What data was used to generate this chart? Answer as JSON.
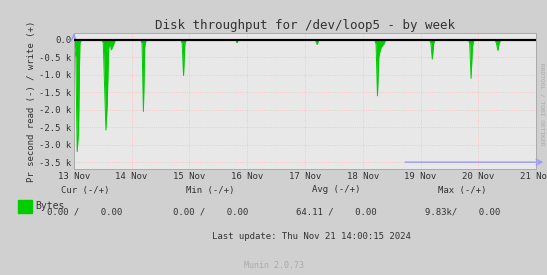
{
  "title": "Disk throughput for /dev/loop5 - by week",
  "ylabel": "Pr second read (-) / write (+)",
  "background_color": "#d0d0d0",
  "plot_bg_color": "#e8e8e8",
  "grid_color_major": "#ffffff",
  "grid_color_minor": "#ffbbbb",
  "line_color": "#00cc00",
  "zero_line_color": "#000000",
  "border_color": "#aaaaaa",
  "yticks": [
    0.0,
    -500,
    -1000,
    -1500,
    -2000,
    -2500,
    -3000,
    -3500
  ],
  "ytick_labels": [
    "0.0",
    "-0.5 k",
    "-1.0 k",
    "-1.5 k",
    "-2.0 k",
    "-2.5 k",
    "-3.0 k",
    "-3.5 k"
  ],
  "ylim": [
    -3700,
    200
  ],
  "xlim_start": 1731456000,
  "xlim_end": 1732147200,
  "xtick_positions": [
    1731456000,
    1731542400,
    1731628800,
    1731715200,
    1731801600,
    1731888000,
    1731974400,
    1732060800,
    1732147200
  ],
  "xtick_labels": [
    "13 Nov",
    "14 Nov",
    "15 Nov",
    "16 Nov",
    "17 Nov",
    "18 Nov",
    "19 Nov",
    "20 Nov",
    "21 Nov"
  ],
  "rrdtool_label": "RRDTOOL / TOBI OETIKER",
  "legend_label": "Bytes",
  "legend_color": "#00cc00",
  "footer_cur_label": "Cur (-/+)",
  "footer_cur_val": "0.00 /    0.00",
  "footer_min_label": "Min (-/+)",
  "footer_min_val": "0.00 /    0.00",
  "footer_avg_label": "Avg (-/+)",
  "footer_avg_val": "64.11 /    0.00",
  "footer_max_label": "Max (-/+)",
  "footer_max_val": "9.83k/    0.00",
  "footer_lastupdate": "Last update: Thu Nov 21 14:00:15 2024",
  "munin_label": "Munin 2.0.73",
  "spike_data": [
    {
      "t": 1731456000,
      "v": 0
    },
    {
      "t": 1731459000,
      "v": -500
    },
    {
      "t": 1731461000,
      "v": -3200
    },
    {
      "t": 1731463000,
      "v": -2600
    },
    {
      "t": 1731465000,
      "v": -100
    },
    {
      "t": 1731467000,
      "v": 0
    },
    {
      "t": 1731498000,
      "v": 0
    },
    {
      "t": 1731500000,
      "v": -90
    },
    {
      "t": 1731502000,
      "v": -1350
    },
    {
      "t": 1731504000,
      "v": -2580
    },
    {
      "t": 1731506000,
      "v": -1800
    },
    {
      "t": 1731508000,
      "v": -250
    },
    {
      "t": 1731510000,
      "v": -80
    },
    {
      "t": 1731512000,
      "v": -280
    },
    {
      "t": 1731516000,
      "v": -100
    },
    {
      "t": 1731518000,
      "v": 0
    },
    {
      "t": 1731556000,
      "v": 0
    },
    {
      "t": 1731558000,
      "v": -100
    },
    {
      "t": 1731560000,
      "v": -2050
    },
    {
      "t": 1731562000,
      "v": -200
    },
    {
      "t": 1731564000,
      "v": 0
    },
    {
      "t": 1731616000,
      "v": 0
    },
    {
      "t": 1731618000,
      "v": -100
    },
    {
      "t": 1731620000,
      "v": -1020
    },
    {
      "t": 1731622000,
      "v": -100
    },
    {
      "t": 1731624000,
      "v": 0
    },
    {
      "t": 1731698000,
      "v": 0
    },
    {
      "t": 1731700000,
      "v": -80
    },
    {
      "t": 1731702000,
      "v": 0
    },
    {
      "t": 1731817000,
      "v": 0
    },
    {
      "t": 1731820000,
      "v": -130
    },
    {
      "t": 1731822000,
      "v": 0
    },
    {
      "t": 1731906000,
      "v": 0
    },
    {
      "t": 1731908000,
      "v": -130
    },
    {
      "t": 1731910000,
      "v": -1600
    },
    {
      "t": 1731912000,
      "v": -500
    },
    {
      "t": 1731914000,
      "v": -300
    },
    {
      "t": 1731916000,
      "v": -200
    },
    {
      "t": 1731918000,
      "v": -150
    },
    {
      "t": 1731920000,
      "v": -100
    },
    {
      "t": 1731922000,
      "v": 0
    },
    {
      "t": 1731988000,
      "v": 0
    },
    {
      "t": 1731990000,
      "v": -100
    },
    {
      "t": 1731992000,
      "v": -550
    },
    {
      "t": 1731994000,
      "v": -100
    },
    {
      "t": 1731996000,
      "v": 0
    },
    {
      "t": 1732046000,
      "v": 0
    },
    {
      "t": 1732048000,
      "v": -100
    },
    {
      "t": 1732050000,
      "v": -1100
    },
    {
      "t": 1732052000,
      "v": -200
    },
    {
      "t": 1732054000,
      "v": 0
    },
    {
      "t": 1732086000,
      "v": 0
    },
    {
      "t": 1732088000,
      "v": -100
    },
    {
      "t": 1732090000,
      "v": -300
    },
    {
      "t": 1732092000,
      "v": -100
    },
    {
      "t": 1732094000,
      "v": 0
    },
    {
      "t": 1732147200,
      "v": 0
    }
  ]
}
